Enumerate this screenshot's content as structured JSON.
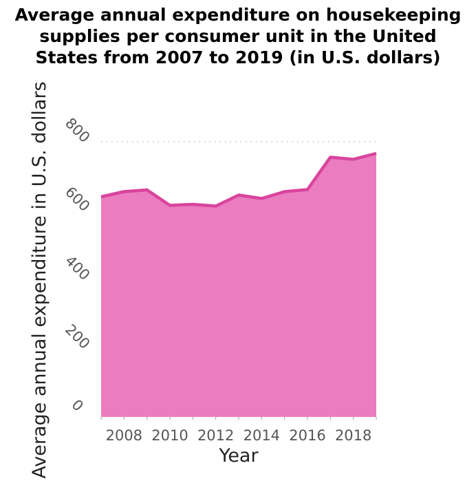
{
  "chart_data": {
    "type": "area",
    "title_lines": [
      "Average annual expenditure on housekeeping",
      "supplies per consumer unit in the United",
      "States from 2007 to 2019 (in U.S. dollars)"
    ],
    "xlabel": "Year",
    "ylabel": "Average annual expenditure in U.S. dollars",
    "x": [
      2007,
      2008,
      2009,
      2010,
      2011,
      2012,
      2013,
      2014,
      2015,
      2016,
      2017,
      2018,
      2019
    ],
    "values": [
      640,
      655,
      660,
      615,
      618,
      613,
      645,
      635,
      655,
      661,
      755,
      749,
      766
    ],
    "xticks": [
      2008,
      2010,
      2012,
      2014,
      2016,
      2018
    ],
    "yticks": [
      0,
      200,
      400,
      600,
      800
    ],
    "xlim": [
      2007,
      2019
    ],
    "ylim": [
      0,
      800
    ],
    "grid": "horizontal-dotted",
    "colors": {
      "fill": "#ea7cbf",
      "line": "#d9449c",
      "grid": "#bbbbbb"
    }
  }
}
